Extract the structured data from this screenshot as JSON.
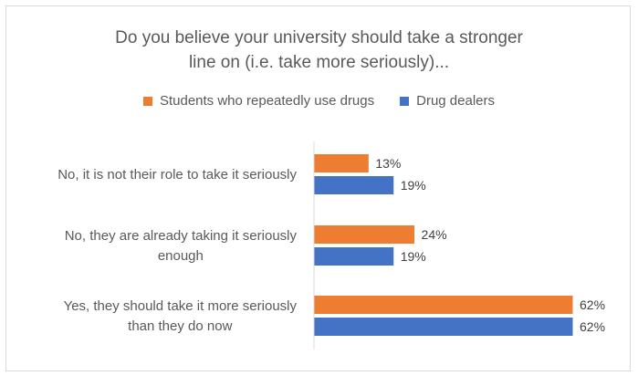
{
  "chart_data": {
    "type": "bar",
    "orientation": "horizontal",
    "title_lines": [
      "Do you believe your university should take a stronger",
      "line on (i.e. take more seriously)..."
    ],
    "categories": [
      [
        "No, it is not their role to take it seriously"
      ],
      [
        "No, they are already taking it seriously",
        "enough"
      ],
      [
        "Yes, they should take it more seriously",
        "than they do now"
      ]
    ],
    "series": [
      {
        "name": "Students who repeatedly use drugs",
        "color": "#ED7D31",
        "values": [
          13,
          24,
          62
        ],
        "labels": [
          "13%",
          "24%",
          "62%"
        ]
      },
      {
        "name": "Drug dealers",
        "color": "#4472C4",
        "values": [
          19,
          19,
          62
        ],
        "labels": [
          "19%",
          "19%",
          "62%"
        ]
      }
    ],
    "xlim": [
      0,
      62
    ],
    "legend_position": "top",
    "grid": false,
    "axis_line_color": "#d9d9d9"
  }
}
